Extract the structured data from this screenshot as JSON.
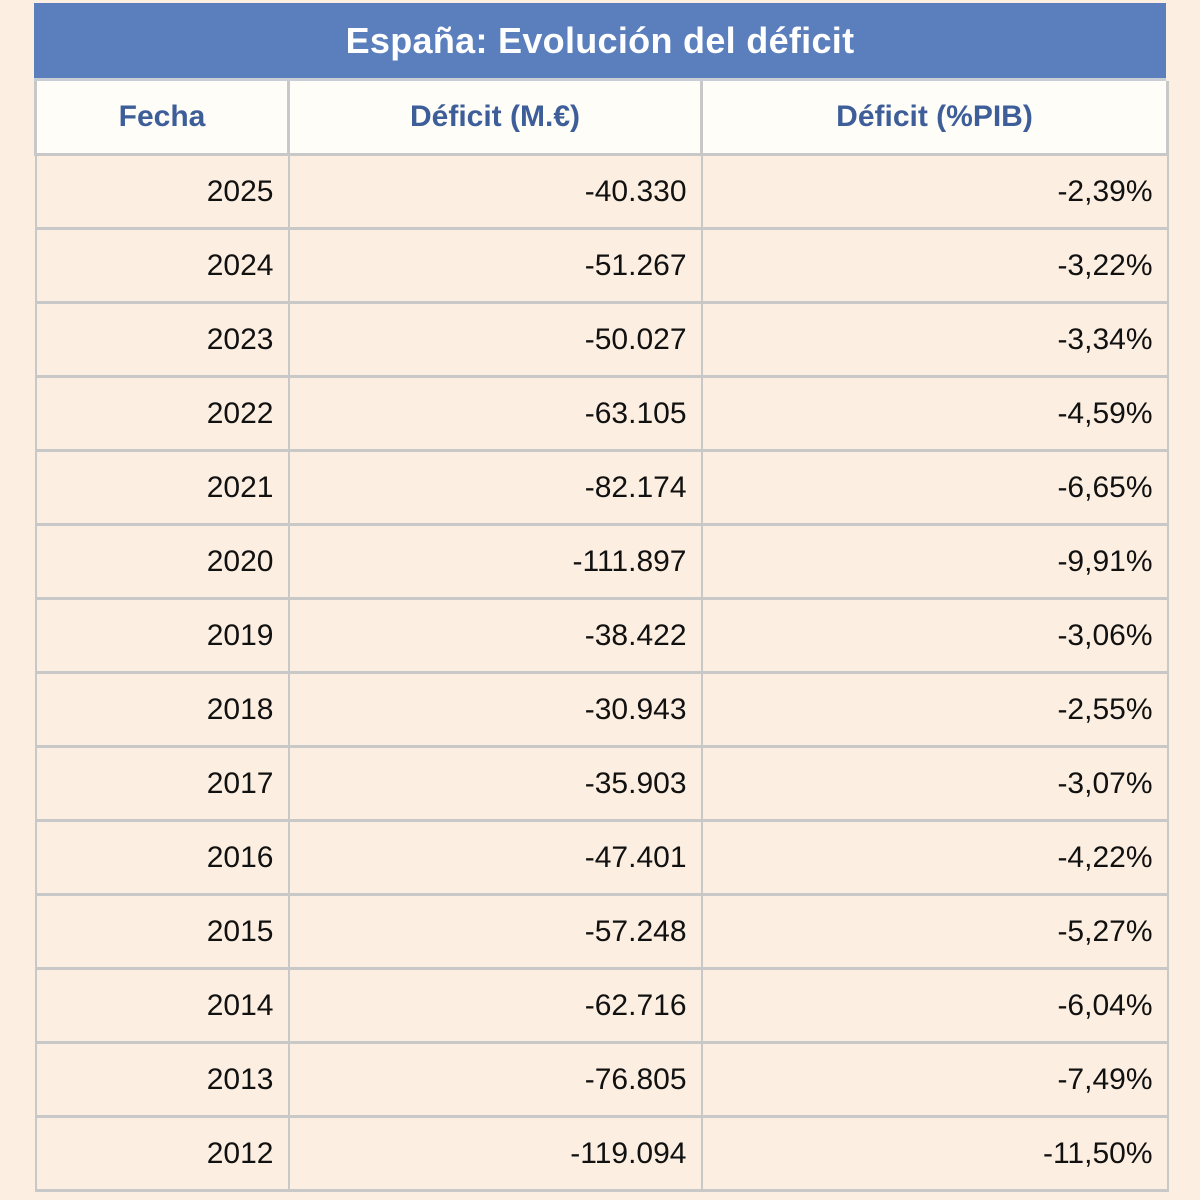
{
  "title": "España: Evolución del déficit",
  "chart_data": {
    "type": "table",
    "title": "España: Evolución del déficit",
    "columns": [
      "Fecha",
      "Déficit (M.€)",
      "Déficit (%PIB)"
    ],
    "rows": [
      [
        "2025",
        "-40.330",
        "-2,39%"
      ],
      [
        "2024",
        "-51.267",
        "-3,22%"
      ],
      [
        "2023",
        "-50.027",
        "-3,34%"
      ],
      [
        "2022",
        "-63.105",
        "-4,59%"
      ],
      [
        "2021",
        "-82.174",
        "-6,65%"
      ],
      [
        "2020",
        "-111.897",
        "-9,91%"
      ],
      [
        "2019",
        "-38.422",
        "-3,06%"
      ],
      [
        "2018",
        "-30.943",
        "-2,55%"
      ],
      [
        "2017",
        "-35.903",
        "-3,07%"
      ],
      [
        "2016",
        "-47.401",
        "-4,22%"
      ],
      [
        "2015",
        "-57.248",
        "-5,27%"
      ],
      [
        "2014",
        "-62.716",
        "-6,04%"
      ],
      [
        "2013",
        "-76.805",
        "-7,49%"
      ],
      [
        "2012",
        "-119.094",
        "-11,50%"
      ]
    ]
  },
  "colors": {
    "header_bg": "#5b7fbd",
    "header_text": "#3d5e99",
    "row_bg": "#fcefe1",
    "grid": "#c8c8c8"
  }
}
